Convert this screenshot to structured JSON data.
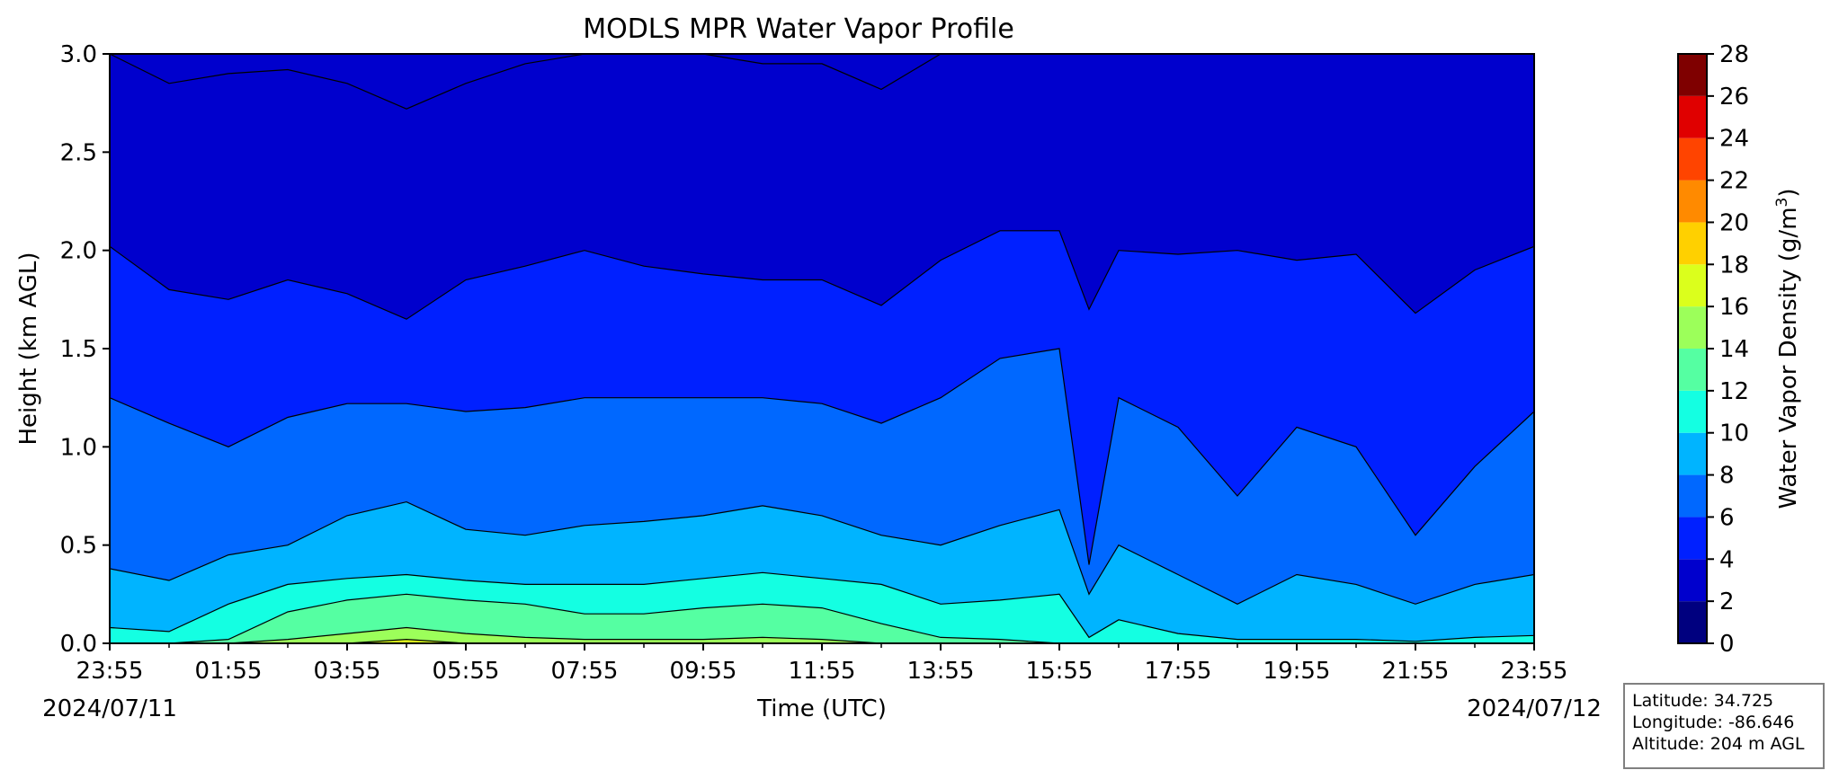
{
  "chart_data": {
    "type": "area",
    "title": "MODLS MPR Water Vapor Profile",
    "xlabel": "Time (UTC)",
    "ylabel": "Height (km AGL)",
    "xticks": [
      "23:55",
      "01:55",
      "03:55",
      "05:55",
      "07:55",
      "09:55",
      "11:55",
      "13:55",
      "15:55",
      "17:55",
      "19:55",
      "21:55",
      "23:55"
    ],
    "date_start": "2024/07/11",
    "date_end": "2024/07/12",
    "ylim": [
      0.0,
      3.0
    ],
    "yticks": [
      "0.0",
      "0.5",
      "1.0",
      "1.5",
      "2.0",
      "2.5",
      "3.0"
    ],
    "x_hours": [
      0,
      1,
      2,
      3,
      4,
      5,
      6,
      7,
      8,
      9,
      10,
      11,
      12,
      13,
      14,
      15,
      16,
      16.5,
      17,
      18,
      19,
      20,
      21,
      22,
      23,
      24
    ],
    "colorbar": {
      "label": "Water Vapor Density (g/m",
      "label_sup": "3",
      "label_end": ")",
      "ticks": [
        "0",
        "2",
        "4",
        "6",
        "8",
        "10",
        "12",
        "14",
        "16",
        "18",
        "20",
        "22",
        "24",
        "26",
        "28"
      ],
      "levels": [
        0,
        2,
        4,
        6,
        8,
        10,
        12,
        14,
        16,
        18,
        20,
        22,
        24,
        26,
        28
      ],
      "colors": [
        "#00007f",
        "#0000cd",
        "#0020ff",
        "#0068ff",
        "#00b4ff",
        "#14ffe2",
        "#55ffa2",
        "#9cff5a",
        "#dbff1c",
        "#ffd000",
        "#ff8a00",
        "#ff4400",
        "#e00000",
        "#7f0000"
      ]
    },
    "contours": [
      {
        "level": 2,
        "color": "#0000cd",
        "heights": [
          3.0,
          2.85,
          2.9,
          2.92,
          2.85,
          2.72,
          2.85,
          2.95,
          3.0,
          3.0,
          3.0,
          2.95,
          2.95,
          2.82,
          3.0,
          3.0,
          3.0,
          3.0,
          3.0,
          3.0,
          3.0,
          3.0,
          3.0,
          3.0,
          3.0,
          3.0
        ]
      },
      {
        "level": 4,
        "color": "#0020ff",
        "heights": [
          2.02,
          1.8,
          1.75,
          1.85,
          1.78,
          1.65,
          1.85,
          1.92,
          2.0,
          1.92,
          1.88,
          1.85,
          1.85,
          1.72,
          1.95,
          2.1,
          2.1,
          1.7,
          2.0,
          1.98,
          2.0,
          1.95,
          1.98,
          1.68,
          1.9,
          2.02
        ]
      },
      {
        "level": 6,
        "color": "#0068ff",
        "heights": [
          1.25,
          1.12,
          1.0,
          1.15,
          1.22,
          1.22,
          1.18,
          1.2,
          1.25,
          1.25,
          1.25,
          1.25,
          1.22,
          1.12,
          1.25,
          1.45,
          1.5,
          0.4,
          1.25,
          1.1,
          0.75,
          1.1,
          1.0,
          0.55,
          0.9,
          1.18
        ]
      },
      {
        "level": 8,
        "color": "#00b4ff",
        "heights": [
          0.38,
          0.32,
          0.45,
          0.5,
          0.65,
          0.72,
          0.58,
          0.55,
          0.6,
          0.62,
          0.65,
          0.7,
          0.65,
          0.55,
          0.5,
          0.6,
          0.68,
          0.25,
          0.5,
          0.35,
          0.2,
          0.35,
          0.3,
          0.2,
          0.3,
          0.35
        ]
      },
      {
        "level": 10,
        "color": "#14ffe2",
        "heights": [
          0.08,
          0.06,
          0.2,
          0.3,
          0.33,
          0.35,
          0.32,
          0.3,
          0.3,
          0.3,
          0.33,
          0.36,
          0.33,
          0.3,
          0.2,
          0.22,
          0.25,
          0.03,
          0.12,
          0.05,
          0.02,
          0.02,
          0.02,
          0.01,
          0.03,
          0.04
        ]
      },
      {
        "level": 12,
        "color": "#55ffa2",
        "heights": [
          0.0,
          0.0,
          0.02,
          0.16,
          0.22,
          0.25,
          0.22,
          0.2,
          0.15,
          0.15,
          0.18,
          0.2,
          0.18,
          0.1,
          0.03,
          0.02,
          0.0,
          0.0,
          0.0,
          0.0,
          0.0,
          0.0,
          0.0,
          0.0,
          0.0,
          0.0
        ]
      },
      {
        "level": 14,
        "color": "#9cff5a",
        "heights": [
          0.0,
          0.0,
          0.0,
          0.02,
          0.05,
          0.08,
          0.05,
          0.03,
          0.02,
          0.02,
          0.02,
          0.03,
          0.02,
          0.0,
          0.0,
          0.0,
          0.0,
          0.0,
          0.0,
          0.0,
          0.0,
          0.0,
          0.0,
          0.0,
          0.0,
          0.0
        ]
      },
      {
        "level": 16,
        "color": "#dbff1c",
        "heights": [
          0.0,
          0.0,
          0.0,
          0.0,
          0.0,
          0.02,
          0.0,
          0.0,
          0.0,
          0.0,
          0.0,
          0.0,
          0.0,
          0.0,
          0.0,
          0.0,
          0.0,
          0.0,
          0.0,
          0.0,
          0.0,
          0.0,
          0.0,
          0.0,
          0.0,
          0.0
        ]
      }
    ]
  },
  "station": {
    "latitude": "Latitude: 34.725",
    "longitude": "Longitude: -86.646",
    "altitude": "Altitude: 204 m AGL"
  }
}
